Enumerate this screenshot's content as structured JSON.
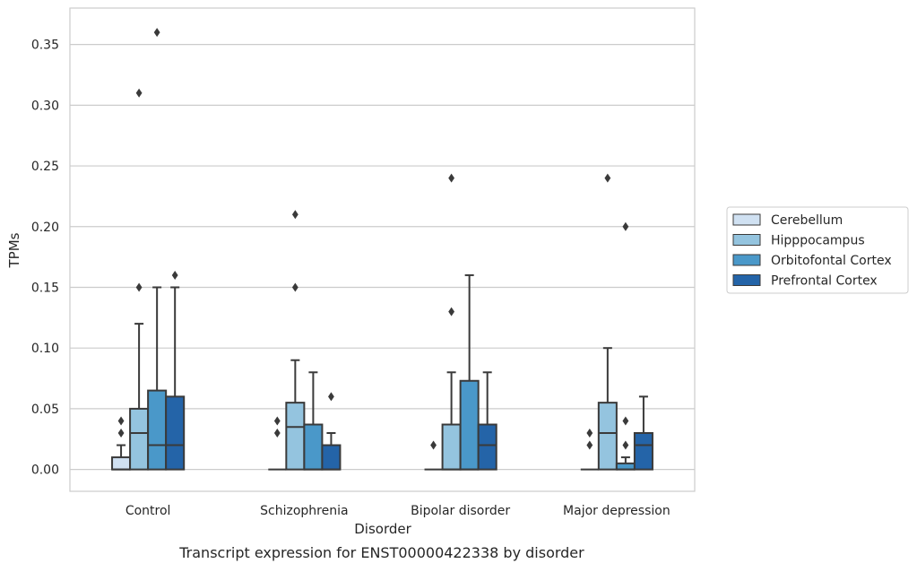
{
  "caption": "Transcript expression for ENST00000422338 by disorder",
  "chart_data": {
    "type": "box",
    "xlabel": "Disorder",
    "ylabel": "TPMs",
    "ylim": [
      -0.018,
      0.38
    ],
    "yticks": [
      0.0,
      0.05,
      0.1,
      0.15,
      0.2,
      0.25,
      0.3,
      0.35
    ],
    "ytick_labels": [
      "0.00",
      "0.05",
      "0.10",
      "0.15",
      "0.20",
      "0.25",
      "0.30",
      "0.35"
    ],
    "grid": true,
    "legend_position": "right",
    "categories": [
      "Control",
      "Schizophrenia",
      "Bipolar disorder",
      "Major depression"
    ],
    "series": [
      {
        "name": "Cerebellum",
        "color": "#d0e1f2",
        "boxes": [
          {
            "q1": 0.0,
            "median": 0.0,
            "q3": 0.01,
            "whisker_low": 0.0,
            "whisker_high": 0.02,
            "outliers": [
              0.03,
              0.04
            ]
          },
          {
            "q1": 0.0,
            "median": 0.0,
            "q3": 0.0,
            "whisker_low": 0.0,
            "whisker_high": 0.0,
            "outliers": [
              0.03,
              0.04
            ]
          },
          {
            "q1": 0.0,
            "median": 0.0,
            "q3": 0.0,
            "whisker_low": 0.0,
            "whisker_high": 0.0,
            "outliers": [
              0.02
            ]
          },
          {
            "q1": 0.0,
            "median": 0.0,
            "q3": 0.0,
            "whisker_low": 0.0,
            "whisker_high": 0.0,
            "outliers": [
              0.02,
              0.03
            ]
          }
        ]
      },
      {
        "name": "Hipppocampus",
        "color": "#94c4df",
        "boxes": [
          {
            "q1": 0.0,
            "median": 0.03,
            "q3": 0.05,
            "whisker_low": 0.0,
            "whisker_high": 0.12,
            "outliers": [
              0.15,
              0.31
            ]
          },
          {
            "q1": 0.0,
            "median": 0.035,
            "q3": 0.055,
            "whisker_low": 0.0,
            "whisker_high": 0.09,
            "outliers": [
              0.15,
              0.21
            ]
          },
          {
            "q1": 0.0,
            "median": 0.0,
            "q3": 0.037,
            "whisker_low": 0.0,
            "whisker_high": 0.08,
            "outliers": [
              0.13,
              0.24
            ]
          },
          {
            "q1": 0.0,
            "median": 0.03,
            "q3": 0.055,
            "whisker_low": 0.0,
            "whisker_high": 0.1,
            "outliers": [
              0.24
            ]
          }
        ]
      },
      {
        "name": "Orbitofontal Cortex",
        "color": "#4a98c9",
        "boxes": [
          {
            "q1": 0.0,
            "median": 0.02,
            "q3": 0.065,
            "whisker_low": 0.0,
            "whisker_high": 0.15,
            "outliers": [
              0.36
            ]
          },
          {
            "q1": 0.0,
            "median": 0.0,
            "q3": 0.037,
            "whisker_low": 0.0,
            "whisker_high": 0.08,
            "outliers": []
          },
          {
            "q1": 0.0,
            "median": 0.0,
            "q3": 0.073,
            "whisker_low": 0.0,
            "whisker_high": 0.16,
            "outliers": []
          },
          {
            "q1": 0.0,
            "median": 0.0,
            "q3": 0.005,
            "whisker_low": 0.0,
            "whisker_high": 0.01,
            "outliers": [
              0.02,
              0.04,
              0.2
            ]
          }
        ]
      },
      {
        "name": "Prefrontal Cortex",
        "color": "#2464a8",
        "boxes": [
          {
            "q1": 0.0,
            "median": 0.02,
            "q3": 0.06,
            "whisker_low": 0.0,
            "whisker_high": 0.15,
            "outliers": [
              0.16
            ]
          },
          {
            "q1": 0.0,
            "median": 0.0,
            "q3": 0.02,
            "whisker_low": 0.0,
            "whisker_high": 0.03,
            "outliers": [
              0.06
            ]
          },
          {
            "q1": 0.0,
            "median": 0.02,
            "q3": 0.037,
            "whisker_low": 0.0,
            "whisker_high": 0.08,
            "outliers": []
          },
          {
            "q1": 0.0,
            "median": 0.02,
            "q3": 0.03,
            "whisker_low": 0.0,
            "whisker_high": 0.06,
            "outliers": []
          }
        ]
      }
    ]
  }
}
